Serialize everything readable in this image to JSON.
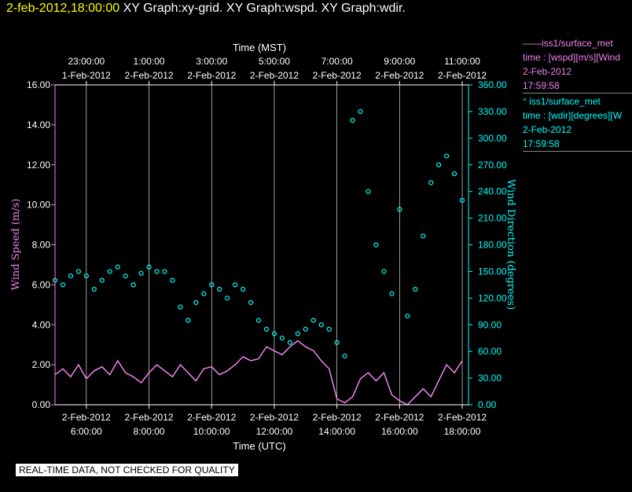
{
  "title": {
    "timestamp": "2-feb-2012,18:00:00",
    "text": "XY Graph:xy-grid.  XY Graph:wspd.  XY Graph:wdir."
  },
  "legend": [
    {
      "lines": [
        "——iss1/surface_met",
        "time : [wspd][m/s][Wind",
        "2-Feb-2012",
        "17:59:58"
      ]
    },
    {
      "lines": [
        "°  iss1/surface_met",
        "time : [wdir][degrees][W",
        "2-Feb-2012",
        "17:59:58"
      ]
    }
  ],
  "footer_note": "REAL-TIME DATA, NOT CHECKED FOR QUALITY",
  "colors": {
    "wspd": "#ee82ee",
    "wdir": "#00ffff",
    "grid": "#ffffff",
    "axis_text": "#ffffff"
  },
  "chart_data": {
    "type": "line",
    "title": "",
    "xlabel_bottom": "Time (UTC)",
    "xlabel_top": "Time (MST)",
    "ylabel_left": "Wind Speed (m/s)",
    "ylabel_right": "Wind Direction (degrees)",
    "xlim_hours_utc": [
      5.0,
      18.2
    ],
    "ylim_left": [
      0,
      16
    ],
    "ylim_right": [
      0,
      360
    ],
    "x_ticks_bottom": [
      {
        "h": 6,
        "date": "2-Feb-2012",
        "time": "6:00:00"
      },
      {
        "h": 8,
        "date": "2-Feb-2012",
        "time": "8:00:00"
      },
      {
        "h": 10,
        "date": "2-Feb-2012",
        "time": "10:00:00"
      },
      {
        "h": 12,
        "date": "2-Feb-2012",
        "time": "12:00:00"
      },
      {
        "h": 14,
        "date": "2-Feb-2012",
        "time": "14:00:00"
      },
      {
        "h": 16,
        "date": "2-Feb-2012",
        "time": "16:00:00"
      },
      {
        "h": 18,
        "date": "2-Feb-2012",
        "time": "18:00:00"
      }
    ],
    "x_ticks_top": [
      {
        "h": 6,
        "date": "1-Feb-2012",
        "time": "23:00:00"
      },
      {
        "h": 8,
        "date": "2-Feb-2012",
        "time": "1:00:00"
      },
      {
        "h": 10,
        "date": "2-Feb-2012",
        "time": "3:00:00"
      },
      {
        "h": 12,
        "date": "2-Feb-2012",
        "time": "5:00:00"
      },
      {
        "h": 14,
        "date": "2-Feb-2012",
        "time": "7:00:00"
      },
      {
        "h": 16,
        "date": "2-Feb-2012",
        "time": "9:00:00"
      },
      {
        "h": 18,
        "date": "2-Feb-2012",
        "time": "11:00:00"
      }
    ],
    "y_ticks_left": [
      "0.00",
      "2.00",
      "4.00",
      "6.00",
      "8.00",
      "10.00",
      "12.00",
      "14.00",
      "16.00"
    ],
    "y_ticks_right": [
      "0.00",
      "30.00",
      "60.00",
      "90.00",
      "120.00",
      "150.00",
      "180.00",
      "210.00",
      "240.00",
      "270.00",
      "300.00",
      "330.00",
      "360.00"
    ],
    "grid": "vertical",
    "series": [
      {
        "name": "iss1/surface_met wspd",
        "style": "line",
        "axis": "left",
        "points": [
          [
            5.0,
            1.5
          ],
          [
            5.25,
            1.8
          ],
          [
            5.5,
            1.4
          ],
          [
            5.75,
            2.0
          ],
          [
            6.0,
            1.3
          ],
          [
            6.25,
            1.7
          ],
          [
            6.5,
            1.9
          ],
          [
            6.75,
            1.5
          ],
          [
            7.0,
            2.2
          ],
          [
            7.25,
            1.6
          ],
          [
            7.5,
            1.4
          ],
          [
            7.75,
            1.1
          ],
          [
            8.0,
            1.6
          ],
          [
            8.25,
            2.0
          ],
          [
            8.5,
            1.7
          ],
          [
            8.75,
            1.4
          ],
          [
            9.0,
            2.0
          ],
          [
            9.25,
            1.6
          ],
          [
            9.5,
            1.2
          ],
          [
            9.75,
            1.8
          ],
          [
            10.0,
            1.9
          ],
          [
            10.25,
            1.5
          ],
          [
            10.5,
            1.7
          ],
          [
            10.75,
            2.0
          ],
          [
            11.0,
            2.4
          ],
          [
            11.25,
            2.2
          ],
          [
            11.5,
            2.3
          ],
          [
            11.75,
            2.9
          ],
          [
            12.0,
            2.7
          ],
          [
            12.25,
            2.5
          ],
          [
            12.5,
            2.9
          ],
          [
            12.75,
            3.2
          ],
          [
            13.0,
            2.9
          ],
          [
            13.25,
            2.7
          ],
          [
            13.5,
            2.2
          ],
          [
            13.75,
            1.8
          ],
          [
            14.0,
            0.3
          ],
          [
            14.25,
            0.1
          ],
          [
            14.5,
            0.4
          ],
          [
            14.75,
            1.3
          ],
          [
            15.0,
            1.6
          ],
          [
            15.25,
            1.2
          ],
          [
            15.5,
            1.6
          ],
          [
            15.75,
            0.5
          ],
          [
            16.0,
            0.2
          ],
          [
            16.25,
            0.0
          ],
          [
            16.5,
            0.4
          ],
          [
            16.75,
            0.8
          ],
          [
            17.0,
            0.4
          ],
          [
            17.25,
            1.2
          ],
          [
            17.5,
            2.0
          ],
          [
            17.75,
            1.6
          ],
          [
            18.0,
            2.2
          ]
        ]
      },
      {
        "name": "iss1/surface_met wdir",
        "style": "points",
        "axis": "right",
        "points": [
          [
            5.0,
            140
          ],
          [
            5.25,
            135
          ],
          [
            5.5,
            145
          ],
          [
            5.75,
            150
          ],
          [
            6.0,
            145
          ],
          [
            6.25,
            130
          ],
          [
            6.5,
            140
          ],
          [
            6.75,
            150
          ],
          [
            7.0,
            155
          ],
          [
            7.25,
            145
          ],
          [
            7.5,
            135
          ],
          [
            7.75,
            148
          ],
          [
            8.0,
            155
          ],
          [
            8.25,
            150
          ],
          [
            8.5,
            150
          ],
          [
            8.75,
            140
          ],
          [
            9.0,
            110
          ],
          [
            9.25,
            95
          ],
          [
            9.5,
            115
          ],
          [
            9.75,
            125
          ],
          [
            10.0,
            135
          ],
          [
            10.25,
            130
          ],
          [
            10.5,
            120
          ],
          [
            10.75,
            135
          ],
          [
            11.0,
            130
          ],
          [
            11.25,
            115
          ],
          [
            11.5,
            95
          ],
          [
            11.75,
            85
          ],
          [
            12.0,
            80
          ],
          [
            12.25,
            75
          ],
          [
            12.5,
            70
          ],
          [
            12.75,
            80
          ],
          [
            13.0,
            85
          ],
          [
            13.25,
            95
          ],
          [
            13.5,
            90
          ],
          [
            13.75,
            85
          ],
          [
            14.0,
            70
          ],
          [
            14.25,
            55
          ],
          [
            14.5,
            320
          ],
          [
            14.75,
            330
          ],
          [
            15.0,
            240
          ],
          [
            15.25,
            180
          ],
          [
            15.5,
            150
          ],
          [
            15.75,
            125
          ],
          [
            16.0,
            220
          ],
          [
            16.25,
            100
          ],
          [
            16.5,
            130
          ],
          [
            16.75,
            190
          ],
          [
            17.0,
            250
          ],
          [
            17.25,
            270
          ],
          [
            17.5,
            280
          ],
          [
            17.75,
            260
          ],
          [
            18.0,
            230
          ]
        ]
      }
    ]
  }
}
